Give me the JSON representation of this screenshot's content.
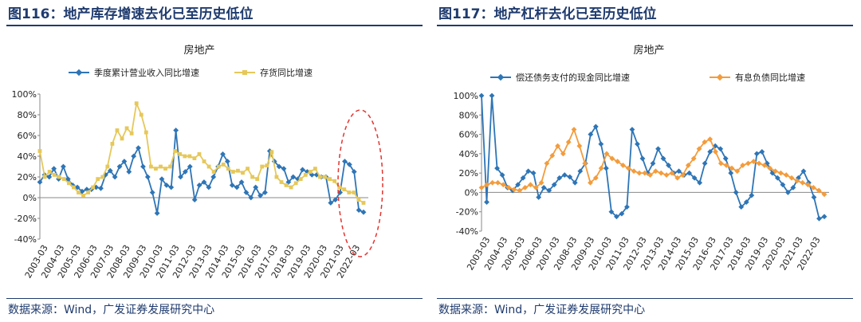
{
  "panels": [
    {
      "title": "图116：地产库存增速去化已至历史低位",
      "source": "数据来源：Wind，广发证券发展研究中心"
    },
    {
      "title": "图117：地产杠杆去化已至历史低位",
      "source": "数据来源：Wind，广发证券发展研究中心"
    }
  ],
  "chart_data": [
    {
      "type": "line",
      "title": "房地产",
      "years": [
        "2003-03",
        "2004-03",
        "2005-03",
        "2006-03",
        "2007-03",
        "2008-03",
        "2009-03",
        "2010-03",
        "2011-03",
        "2012-03",
        "2013-03",
        "2014-03",
        "2015-03",
        "2016-03",
        "2017-03",
        "2018-03",
        "2019-03",
        "2020-03",
        "2021-03",
        "2022-03"
      ],
      "ylim": [
        -40,
        100
      ],
      "yticks": [
        "-40%",
        "-20%",
        "0%",
        "20%",
        "40%",
        "60%",
        "80%",
        "100%"
      ],
      "grid": false,
      "legend": "top",
      "annotation": "dashed red ellipse around 2021-2022",
      "colors": {
        "series1": "#2e75b6",
        "series2": "#e6c85a",
        "annotation": "#e3342f"
      },
      "series": [
        {
          "name": "季度累计营业收入同比增速",
          "values": [
            15,
            22,
            20,
            28,
            18,
            30,
            18,
            12,
            10,
            6,
            8,
            8,
            10,
            9,
            22,
            26,
            20,
            30,
            35,
            25,
            40,
            48,
            30,
            20,
            5,
            -15,
            18,
            12,
            10,
            65,
            20,
            25,
            30,
            -2,
            12,
            15,
            10,
            20,
            30,
            42,
            35,
            12,
            10,
            15,
            5,
            0,
            10,
            2,
            5,
            45,
            35,
            30,
            28,
            15,
            20,
            18,
            27,
            25,
            22,
            22,
            20,
            20,
            -5,
            -2,
            5,
            35,
            32,
            25,
            -12,
            -14
          ]
        },
        {
          "name": "存货同比增速",
          "values": [
            45,
            20,
            25,
            22,
            20,
            18,
            14,
            10,
            5,
            2,
            5,
            10,
            18,
            20,
            30,
            52,
            65,
            57,
            67,
            62,
            91,
            80,
            63,
            30,
            28,
            30,
            28,
            30,
            45,
            42,
            40,
            40,
            38,
            42,
            35,
            30,
            25,
            30,
            32,
            28,
            25,
            26,
            24,
            28,
            20,
            18,
            30,
            31,
            44,
            20,
            15,
            12,
            10,
            14,
            18,
            22,
            25,
            28,
            20,
            20,
            18,
            16,
            10,
            8,
            5,
            5,
            -2,
            -5
          ]
        }
      ]
    },
    {
      "type": "line",
      "title": "房地产",
      "years": [
        "2003-03",
        "2004-03",
        "2005-03",
        "2006-03",
        "2007-03",
        "2008-03",
        "2009-03",
        "2010-03",
        "2011-03",
        "2012-03",
        "2013-03",
        "2014-03",
        "2015-03",
        "2016-03",
        "2017-03",
        "2018-03",
        "2019-03",
        "2020-03",
        "2021-03",
        "2022-03"
      ],
      "ylim": [
        -40,
        100
      ],
      "yticks": [
        "-40%",
        "-20%",
        "0%",
        "20%",
        "40%",
        "60%",
        "80%",
        "100%"
      ],
      "grid": false,
      "legend": "top",
      "colors": {
        "series1": "#2e75b6",
        "series2": "#f39c3c"
      },
      "series": [
        {
          "name": "偿还债务支付的现金同比增速",
          "values": [
            100,
            -10,
            100,
            25,
            18,
            5,
            2,
            8,
            15,
            22,
            20,
            -5,
            5,
            2,
            8,
            15,
            18,
            16,
            10,
            22,
            30,
            60,
            68,
            50,
            25,
            -20,
            -25,
            -22,
            -15,
            65,
            50,
            35,
            20,
            30,
            45,
            35,
            28,
            20,
            22,
            18,
            20,
            15,
            10,
            30,
            42,
            48,
            45,
            35,
            20,
            0,
            -15,
            -10,
            -3,
            40,
            42,
            30,
            20,
            15,
            8,
            0,
            5,
            15,
            22,
            10,
            -5,
            -27,
            -25
          ]
        },
        {
          "name": "有息负债同比增速",
          "values": [
            5,
            8,
            10,
            10,
            8,
            5,
            3,
            2,
            5,
            8,
            5,
            10,
            30,
            38,
            48,
            40,
            52,
            65,
            48,
            30,
            10,
            15,
            25,
            40,
            35,
            32,
            28,
            25,
            22,
            20,
            20,
            18,
            22,
            20,
            18,
            20,
            15,
            18,
            28,
            35,
            45,
            52,
            55,
            42,
            30,
            28,
            25,
            22,
            28,
            30,
            32,
            30,
            28,
            25,
            22,
            20,
            18,
            15,
            12,
            10,
            8,
            5,
            2,
            -2
          ]
        }
      ]
    }
  ]
}
